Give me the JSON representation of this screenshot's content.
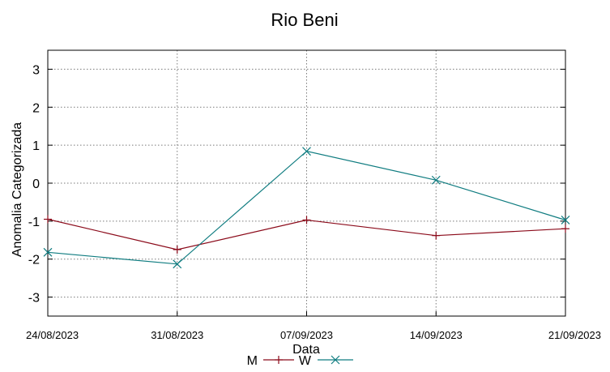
{
  "chart_data": {
    "type": "line",
    "title": "Rio Beni",
    "xlabel": "Data",
    "ylabel": "Anomalia Categorizada",
    "categories": [
      "24/08/2023",
      "31/08/2023",
      "07/09/2023",
      "14/09/2023",
      "21/09/2023"
    ],
    "ylim": [
      -3.5,
      3.5
    ],
    "yticks": [
      3,
      2,
      1,
      0,
      -1,
      -2,
      -3
    ],
    "grid": true,
    "legend_placement": "bottom-center",
    "series": [
      {
        "name": "M",
        "color": "#8b0a1a",
        "marker": "plus",
        "values": [
          -0.95,
          -1.75,
          -0.97,
          -1.38,
          -1.2
        ]
      },
      {
        "name": "W",
        "color": "#0f7c80",
        "marker": "cross",
        "values": [
          -1.82,
          -2.13,
          0.84,
          0.08,
          -0.97
        ]
      }
    ]
  }
}
